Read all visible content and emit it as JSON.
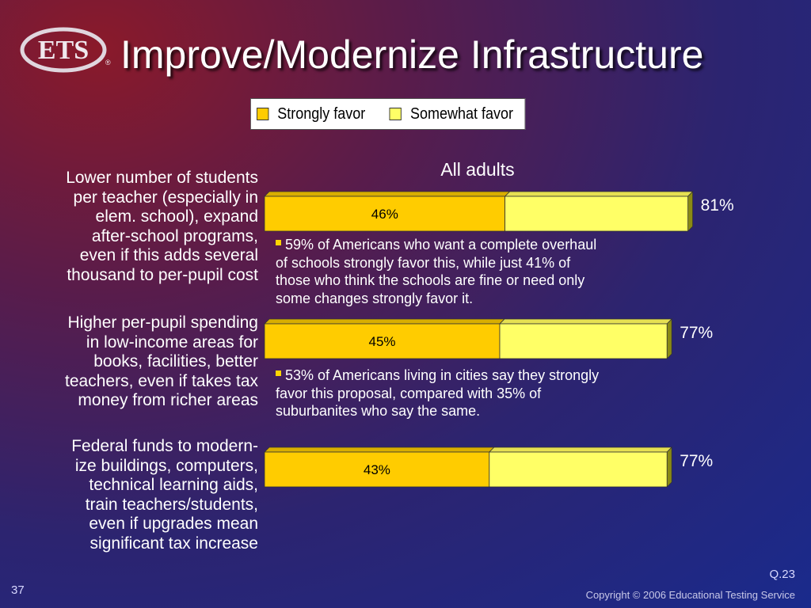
{
  "header": {
    "logo_text": "ETS",
    "title": "Improve/Modernize Infrastructure"
  },
  "legend": {
    "items": [
      {
        "label": "Strongly favor",
        "color": "#ffcc00"
      },
      {
        "label": "Somewhat favor",
        "color": "#ffff66"
      }
    ]
  },
  "chart_data": {
    "type": "bar",
    "orientation": "horizontal",
    "stacked": true,
    "subtitle": "All adults",
    "categories": [
      "Lower number of students per teacher (especially in elem. school), expand after-school programs, even if this adds several thousand to per-pupil cost",
      "Higher per-pupil spending in low-income areas for books, facilities, better teachers, even if takes tax money from richer areas",
      "Federal funds to modern-ize buildings, computers, technical learning aids, train teachers/students, even if upgrades mean significant tax increase"
    ],
    "category_lines": [
      [
        "Lower number of students",
        "per teacher (especially in",
        "elem. school), expand",
        "after-school programs,",
        "even if this adds several",
        "thousand to per-pupil cost"
      ],
      [
        "Higher per-pupil spending",
        "in low-income areas for",
        "books, facilities, better",
        "teachers, even if takes tax",
        "money from richer areas"
      ],
      [
        "Federal funds to modern-",
        "ize buildings, computers,",
        "technical learning aids,",
        "train teachers/students,",
        "even if upgrades mean",
        "significant tax increase"
      ]
    ],
    "series": [
      {
        "name": "Strongly favor",
        "values": [
          46,
          45,
          43
        ],
        "labels": [
          "46%",
          "45%",
          "43%"
        ]
      },
      {
        "name": "Somewhat favor",
        "values": [
          35,
          32,
          34
        ]
      }
    ],
    "totals": [
      81,
      77,
      77
    ],
    "total_labels": [
      "81%",
      "77%",
      "77%"
    ],
    "xlim": [
      0,
      100
    ],
    "legend_position": "top"
  },
  "notes": [
    [
      "59% of  Americans who want a complete overhaul",
      "of schools strongly favor this, while just 41% of",
      "those who think the schools are fine or need only",
      "some changes strongly favor it."
    ],
    [
      "53% of Americans living in cities say they strongly",
      "favor this proposal, compared with 35% of",
      "suburbanites who say the same."
    ]
  ],
  "footer": {
    "question": "Q.23",
    "page": "37",
    "copyright": "Copyright © 2006 Educational Testing Service"
  },
  "colors": {
    "strong": "#ffcc00",
    "somewhat": "#ffff66",
    "strong_top": "#d9ae00",
    "somewhat_top": "#e6e052",
    "side": "#8a8a14"
  }
}
